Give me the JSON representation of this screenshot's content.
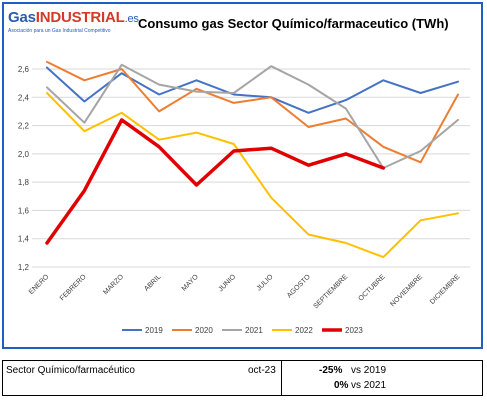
{
  "logo": {
    "gas": "Gas",
    "industrial": "INDUSTRIAL",
    "es": ".es",
    "tagline": "Asociación para un Gas Industrial Competitivo"
  },
  "chart_data": {
    "type": "line",
    "title": "Consumo gas Sector Químico/farmaceutico (TWh)",
    "xlabel": "",
    "ylabel": "",
    "ylim": [
      1.2,
      2.7
    ],
    "yticks": [
      "1,2",
      "1,4",
      "1,6",
      "1,8",
      "2,0",
      "2,2",
      "2,4",
      "2,6"
    ],
    "grid": true,
    "legend_position": "bottom",
    "categories": [
      "ENERO",
      "FEBRERO",
      "MARZO",
      "ABRIL",
      "MAYO",
      "JUNIO",
      "JULIO",
      "AGOSTO",
      "SEPTIEMBRE",
      "OCTUBRE",
      "NOVIEMBRE",
      "DICIEMBRE"
    ],
    "series": [
      {
        "name": "2019",
        "color": "#4472c4",
        "width": 2,
        "values": [
          2.61,
          2.37,
          2.57,
          2.42,
          2.52,
          2.42,
          2.4,
          2.29,
          2.38,
          2.52,
          2.43,
          2.51
        ]
      },
      {
        "name": "2020",
        "color": "#ed7d31",
        "width": 2,
        "values": [
          2.65,
          2.52,
          2.6,
          2.3,
          2.46,
          2.36,
          2.4,
          2.19,
          2.25,
          2.05,
          1.94,
          2.42
        ]
      },
      {
        "name": "2021",
        "color": "#a5a5a5",
        "width": 2,
        "values": [
          2.47,
          2.22,
          2.63,
          2.49,
          2.44,
          2.43,
          2.62,
          2.49,
          2.32,
          1.9,
          2.02,
          2.24
        ]
      },
      {
        "name": "2022",
        "color": "#ffc000",
        "width": 2,
        "values": [
          2.43,
          2.16,
          2.29,
          2.1,
          2.15,
          2.07,
          1.69,
          1.43,
          1.37,
          1.27,
          1.53,
          1.58
        ]
      },
      {
        "name": "2023",
        "color": "#e00000",
        "width": 3.5,
        "values": [
          1.37,
          1.74,
          2.24,
          2.05,
          1.78,
          2.02,
          2.04,
          1.92,
          2.0,
          1.9,
          null,
          null
        ]
      }
    ]
  },
  "summary": {
    "sector": "Sector Químico/farmacéutico",
    "period": "oct-23",
    "change1_value": "-25%",
    "change1_label": "vs 2019",
    "change2_value": "0%",
    "change2_label": "vs 2021"
  }
}
